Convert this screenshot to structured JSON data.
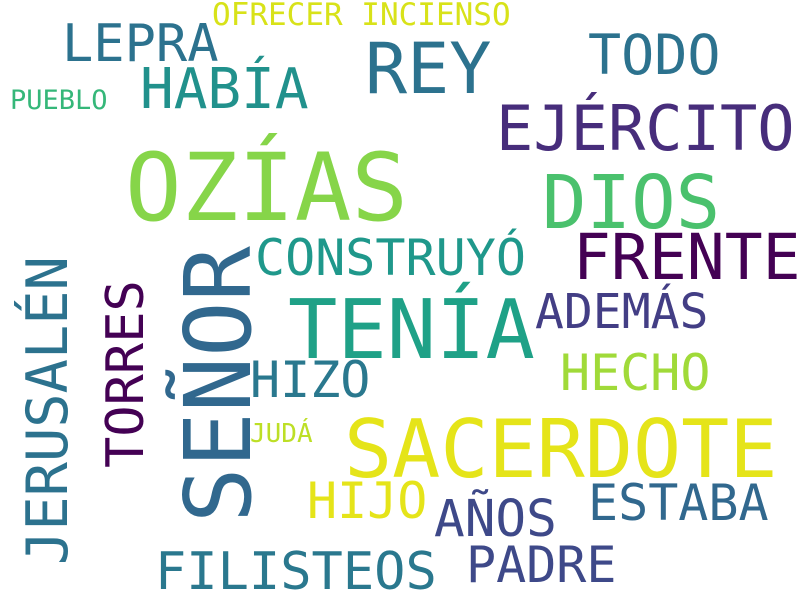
{
  "words": [
    {
      "id": "ozias",
      "text": "OZÍAS",
      "color": "#86d549"
    },
    {
      "id": "senor",
      "text": "SEÑOR",
      "color": "#31688e"
    },
    {
      "id": "sacerdote",
      "text": "SACERDOTE",
      "color": "#e5e419"
    },
    {
      "id": "tenia",
      "text": "TENÍA",
      "color": "#1fa187"
    },
    {
      "id": "dios",
      "text": "DIOS",
      "color": "#4ac16d"
    },
    {
      "id": "rey",
      "text": "REY",
      "color": "#2c728e"
    },
    {
      "id": "jerusalen",
      "text": "JERUSALÉN",
      "color": "#2c728e"
    },
    {
      "id": "ejercito",
      "text": "EJÉRCITO",
      "color": "#472d7b"
    },
    {
      "id": "frente",
      "text": "FRENTE",
      "color": "#440154"
    },
    {
      "id": "construyo",
      "text": "CONSTRUYÓ",
      "color": "#1f988b"
    },
    {
      "id": "habia",
      "text": "HABÍA",
      "color": "#21918c"
    },
    {
      "id": "todo",
      "text": "TODO",
      "color": "#2c728e"
    },
    {
      "id": "torres",
      "text": "TORRES",
      "color": "#440154"
    },
    {
      "id": "lepra",
      "text": "LEPRA",
      "color": "#2c728e"
    },
    {
      "id": "ademas",
      "text": "ADEMÁS",
      "color": "#433e85"
    },
    {
      "id": "hecho",
      "text": "HECHO",
      "color": "#a0da39"
    },
    {
      "id": "hizo",
      "text": "HIZO",
      "color": "#2a788e"
    },
    {
      "id": "filisteos",
      "text": "FILISTEOS",
      "color": "#2a788e"
    },
    {
      "id": "estaba",
      "text": "ESTABA",
      "color": "#31688e"
    },
    {
      "id": "padre",
      "text": "PADRE",
      "color": "#3e4989"
    },
    {
      "id": "anos",
      "text": "AÑOS",
      "color": "#3e4989"
    },
    {
      "id": "hijo",
      "text": "HIJO",
      "color": "#e5e419"
    },
    {
      "id": "ofrecer",
      "text": "OFRECER INCIENSO",
      "color": "#d8e219"
    },
    {
      "id": "pueblo",
      "text": "PUEBLO",
      "color": "#35b779"
    },
    {
      "id": "juda",
      "text": "JUDÁ",
      "color": "#bddf26"
    }
  ]
}
